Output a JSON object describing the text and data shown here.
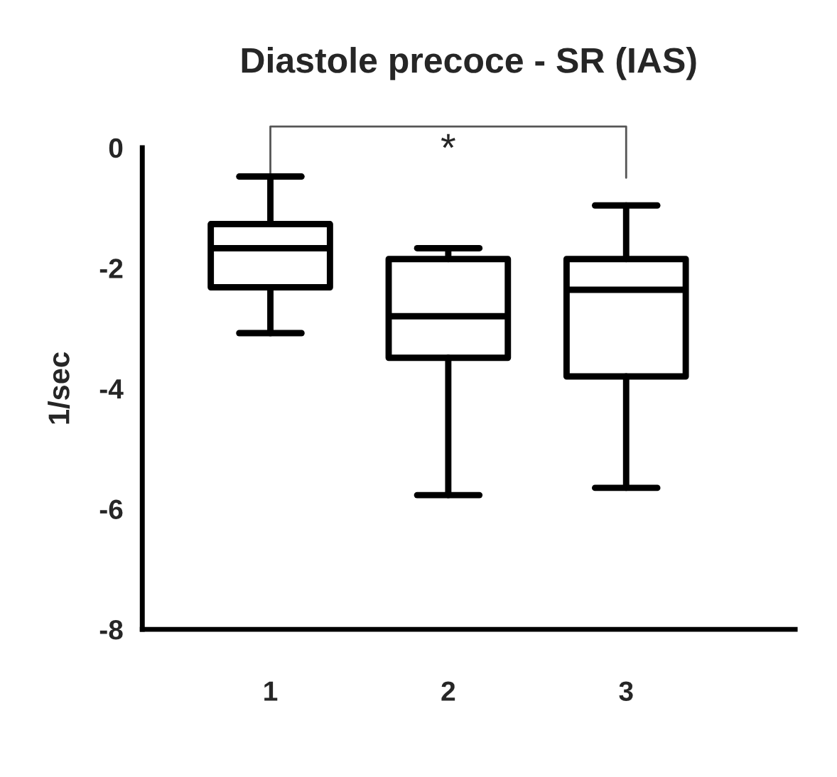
{
  "chart_data": {
    "type": "box",
    "title": "Diastole precoce - SR (IAS)",
    "ylabel": "1/sec",
    "categories": [
      "1",
      "2",
      "3"
    ],
    "boxes": [
      {
        "low": -3.08,
        "q1": -2.32,
        "median": -1.67,
        "q3": -1.27,
        "high": -0.48
      },
      {
        "low": -5.77,
        "q1": -3.49,
        "median": -2.8,
        "q3": -1.85,
        "high": -1.67
      },
      {
        "low": -5.65,
        "q1": -3.8,
        "median": -2.36,
        "q3": -1.85,
        "high": -0.96
      }
    ],
    "color": "#000000",
    "ylim": [
      -8,
      0
    ],
    "yticks": [
      {
        "value": -8,
        "label": "-8"
      },
      {
        "value": -6,
        "label": "-6"
      },
      {
        "value": -4,
        "label": "-4"
      },
      {
        "value": -2,
        "label": "-2"
      },
      0
    ],
    "grid": false,
    "annotations": [
      "*"
    ]
  }
}
